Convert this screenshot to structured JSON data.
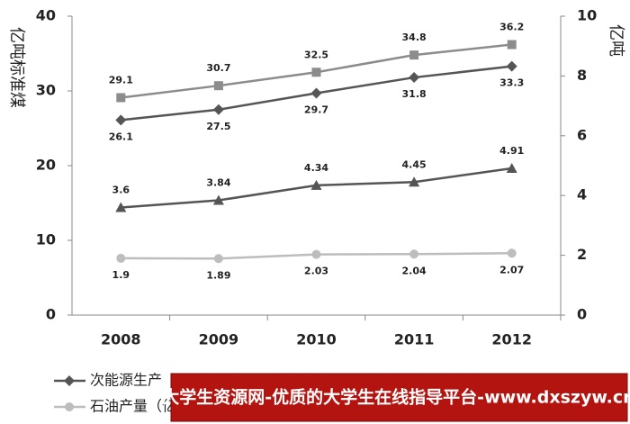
{
  "chart_data": {
    "type": "line",
    "y_label": "亿吨标准煤",
    "y2_label": "亿吨",
    "categories": [
      "2008",
      "2009",
      "2010",
      "2011",
      "2012"
    ],
    "series": [
      {
        "color": "#8c8c8c",
        "marker": "square",
        "values": [
          29.1,
          30.7,
          32.5,
          34.8,
          36.2
        ]
      },
      {
        "name": "次能源生产",
        "color": "#555555",
        "marker": "diamond",
        "values": [
          26.1,
          27.5,
          29.7,
          31.8,
          33.3
        ]
      },
      {
        "color": "#555555",
        "marker": "triangle",
        "axis": "y2",
        "values": [
          3.6,
          3.84,
          4.34,
          4.45,
          4.91
        ]
      },
      {
        "name": "石油产量（亿",
        "color": "#bdbdbd",
        "marker": "circle",
        "axis": "y2",
        "values": [
          1.9,
          1.89,
          2.03,
          2.04,
          2.07
        ]
      }
    ],
    "ylim": [
      0,
      40
    ],
    "yticks": [
      0,
      10,
      20,
      30,
      40
    ],
    "y2lim": [
      0,
      10
    ],
    "y2ticks": [
      0,
      2,
      4,
      6,
      8,
      10
    ],
    "banner": "大学生资源网-优质的大学生在线指导平台-www.dxszyw.cn"
  }
}
